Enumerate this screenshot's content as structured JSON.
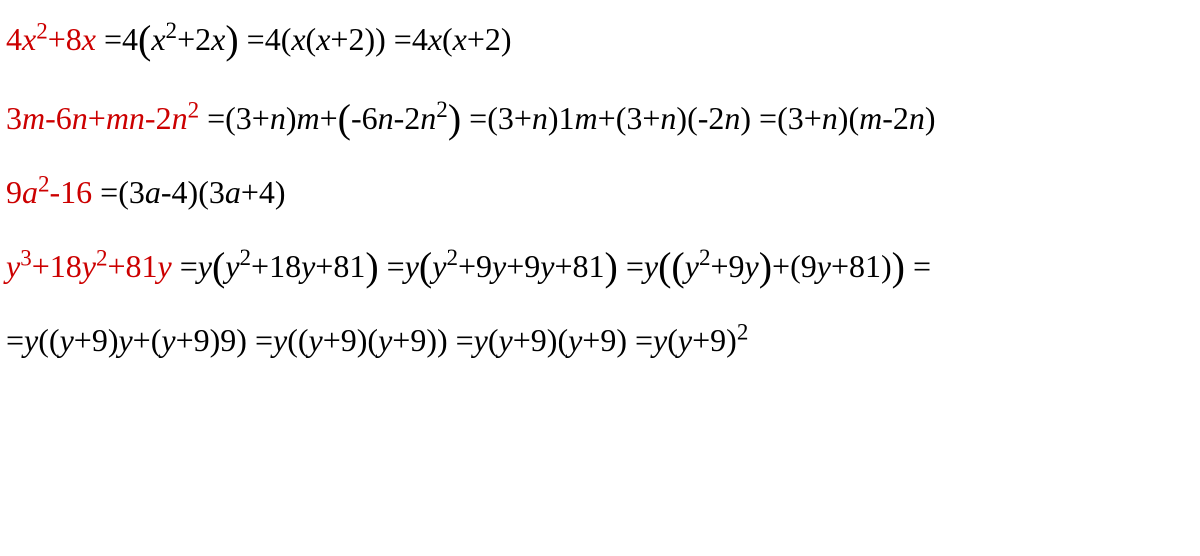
{
  "colors": {
    "text": "#000000",
    "highlight": "#cc0000",
    "background": "#ffffff"
  },
  "typography": {
    "font_family": "Times New Roman",
    "font_size_pt": 24,
    "sup_scale": 0.72
  },
  "equations": [
    {
      "id": "eq1",
      "lhs_color": "#cc0000",
      "lhs": {
        "text": "4x^2+8x",
        "vars": [
          "x"
        ]
      },
      "rhs_steps": [
        {
          "text": "4(x^2+2x)",
          "big_paren": true
        },
        {
          "text": "4(x(x+2))"
        },
        {
          "text": "4x(x+2)"
        }
      ]
    },
    {
      "id": "eq2",
      "lhs_color": "#cc0000",
      "lhs": {
        "text": "3m-6n+mn-2n^2",
        "vars": [
          "m",
          "n"
        ]
      },
      "rhs_steps": [
        {
          "text": "(3+n)m+(-6n-2n^2)",
          "big_paren_second": true
        },
        {
          "text": "(3+n)1m+(3+n)(-2n)"
        },
        {
          "text": "(3+n)(m-2n)"
        }
      ]
    },
    {
      "id": "eq3",
      "lhs_color": "#cc0000",
      "lhs": {
        "text": "9a^2-16",
        "vars": [
          "a"
        ]
      },
      "rhs_steps": [
        {
          "text": "(3a-4)(3a+4)"
        }
      ]
    },
    {
      "id": "eq4",
      "lhs_color": "#cc0000",
      "lhs": {
        "text": "y^3+18y^2+81y",
        "vars": [
          "y"
        ]
      },
      "rhs_steps": [
        {
          "text": "y(y^2+18y+81)",
          "big_paren": true
        },
        {
          "text": "y(y^2+9y+9y+81)",
          "big_paren": true
        },
        {
          "text": "y((y^2+9y)+(9y+81))",
          "big_paren_outer": true
        },
        {
          "trailing_eq": true
        }
      ],
      "continuation": [
        {
          "text": "y((y+9)y+(y+9)9)"
        },
        {
          "text": "y((y+9)(y+9))"
        },
        {
          "text": "y(y+9)(y+9)"
        },
        {
          "text": "y(y+9)^2"
        }
      ]
    }
  ],
  "txt": {
    "eq1_lhs_a": "4",
    "eq1_lhs_b": "x",
    "eq1_lhs_c": "2",
    "eq1_lhs_d": "+8",
    "eq1_lhs_e": "x",
    "eq1_s1a": " =4",
    "eq1_s1b": "x",
    "eq1_s1c": "2",
    "eq1_s1d": "+2",
    "eq1_s1e": "x",
    "eq1_s2a": " =4(",
    "eq1_s2b": "x",
    "eq1_s2c": "(",
    "eq1_s2d": "x",
    "eq1_s2e": "+2))",
    "eq1_s3a": " =4",
    "eq1_s3b": "x",
    "eq1_s3c": "(",
    "eq1_s3d": "x",
    "eq1_s3e": "+2)",
    "eq2_lhs_a": "3",
    "eq2_lhs_b": "m",
    "eq2_lhs_c": "-6",
    "eq2_lhs_d": "n",
    "eq2_lhs_e": "+",
    "eq2_lhs_f": "mn",
    "eq2_lhs_g": "-2",
    "eq2_lhs_h": "n",
    "eq2_lhs_i": "2",
    "eq2_s1a": " =(3+",
    "eq2_s1b": "n",
    "eq2_s1c": ")",
    "eq2_s1d": "m",
    "eq2_s1e": "+",
    "eq2_s1f": "-6",
    "eq2_s1g": "n",
    "eq2_s1h": "-2",
    "eq2_s1i": "n",
    "eq2_s1j": "2",
    "eq2_s2a": " =(3+",
    "eq2_s2b": "n",
    "eq2_s2c": ")1",
    "eq2_s2d": "m",
    "eq2_s2e": "+(3+",
    "eq2_s2f": "n",
    "eq2_s2g": ")(-2",
    "eq2_s2h": "n",
    "eq2_s2i": ")",
    "eq2_s3a": " =(3+",
    "eq2_s3b": "n",
    "eq2_s3c": ")(",
    "eq2_s3d": "m",
    "eq2_s3e": "-2",
    "eq2_s3f": "n",
    "eq2_s3g": ")",
    "eq3_lhs_a": "9",
    "eq3_lhs_b": "a",
    "eq3_lhs_c": "2",
    "eq3_lhs_d": "-16",
    "eq3_s1a": " =(3",
    "eq3_s1b": "a",
    "eq3_s1c": "-4)(3",
    "eq3_s1d": "a",
    "eq3_s1e": "+4)",
    "eq4_lhs_a": "y",
    "eq4_lhs_b": "3",
    "eq4_lhs_c": "+18",
    "eq4_lhs_d": "y",
    "eq4_lhs_e": "2",
    "eq4_lhs_f": "+81",
    "eq4_lhs_g": "y",
    "eq4_s1a": " =",
    "eq4_s1b": "y",
    "eq4_s1c": "y",
    "eq4_s1d": "2",
    "eq4_s1e": "+18",
    "eq4_s1f": "y",
    "eq4_s1g": "+81",
    "eq4_s2a": " =",
    "eq4_s2b": "y",
    "eq4_s2c": "y",
    "eq4_s2d": "2",
    "eq4_s2e": "+9",
    "eq4_s2f": "y",
    "eq4_s2g": "+9",
    "eq4_s2h": "y",
    "eq4_s2i": "+81",
    "eq4_s3a": " =",
    "eq4_s3b": "y",
    "eq4_s3c": "y",
    "eq4_s3d": "2",
    "eq4_s3e": "+9",
    "eq4_s3f": "y",
    "eq4_s3g": "+(9",
    "eq4_s3h": "y",
    "eq4_s3i": "+81)",
    "eq4_s3j": " =",
    "eq4c_a": "=",
    "eq4c_b": "y",
    "eq4c_c": "((",
    "eq4c_d": "y",
    "eq4c_e": "+9)",
    "eq4c_f": "y",
    "eq4c_g": "+(",
    "eq4c_h": "y",
    "eq4c_i": "+9)9)",
    "eq4c_j": " =",
    "eq4c_k": "y",
    "eq4c_l": "((",
    "eq4c_m": "y",
    "eq4c_n": "+9)(",
    "eq4c_o": "y",
    "eq4c_p": "+9))",
    "eq4c_q": " =",
    "eq4c_r": "y",
    "eq4c_s": "(",
    "eq4c_t": "y",
    "eq4c_u": "+9)(",
    "eq4c_v": "y",
    "eq4c_w": "+9)",
    "eq4c_x": " =",
    "eq4c_y": "y",
    "eq4c_z": "(",
    "eq4c_aa": "y",
    "eq4c_ab": "+9)",
    "eq4c_ac": "2",
    "lparen_big": "(",
    "rparen_big": ")"
  }
}
